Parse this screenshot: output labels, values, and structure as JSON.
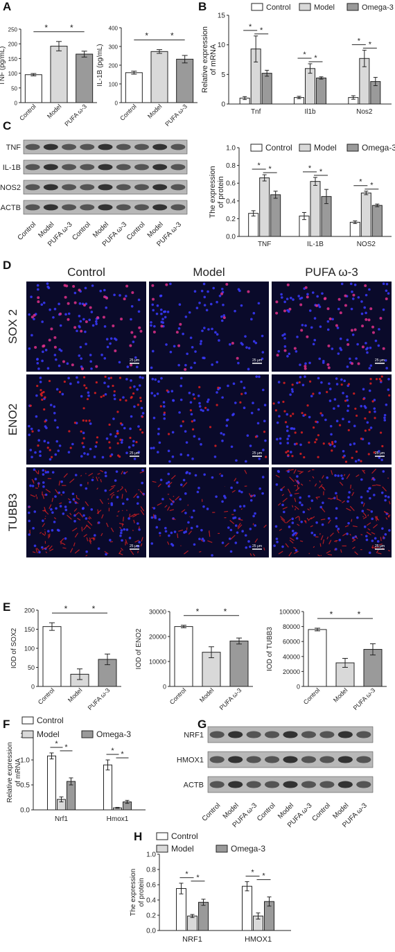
{
  "panel_labels": [
    "A",
    "B",
    "C",
    "D",
    "E",
    "F",
    "G",
    "H"
  ],
  "colors": {
    "control": "#ffffff",
    "model": "#d9d9d9",
    "omega": "#9a9a9a",
    "axis": "#222222",
    "blot_bg": "#b8b8b8",
    "band": "#2a2a2a",
    "micro_bg": "#0a0a2a",
    "nuclei": "#3a3aff",
    "stain_magenta": "#e0308a",
    "stain_red": "#e02020"
  },
  "blots": {
    "C": {
      "bands": [
        "TNF",
        "IL-1B",
        "NOS2",
        "ACTB"
      ],
      "lanes": [
        "Control",
        "Model",
        "PUFA ω-3",
        "Control",
        "Model",
        "PUFA ω-3",
        "Control",
        "Model",
        "PUFA ω-3"
      ]
    },
    "G": {
      "bands": [
        "NRF1",
        "HMOX1",
        "ACTB"
      ],
      "lanes": [
        "Control",
        "Model",
        "PUFA ω-3",
        "Control",
        "Model",
        "PUFA ω-3",
        "Control",
        "Model",
        "PUFA ω-3"
      ]
    }
  },
  "micrographs": {
    "columns": [
      "Control",
      "Model",
      "PUFA ω-3"
    ],
    "rows": [
      "SOX 2",
      "ENO2",
      "TUBB3"
    ],
    "scale_bar": "25 μm"
  },
  "chart_data": [
    {
      "id": "A1",
      "type": "bar",
      "categories": [
        "Control",
        "Model",
        "PUFA ω-3"
      ],
      "values": [
        95,
        192,
        165
      ],
      "errors": [
        4,
        16,
        10
      ],
      "ylabel": "TNF (pg/mL)",
      "ylim": [
        0,
        250
      ],
      "yticks": [
        0,
        50,
        100,
        150,
        200,
        250
      ],
      "sig": [
        "*",
        "*"
      ]
    },
    {
      "id": "A2",
      "type": "bar",
      "categories": [
        "Control",
        "Model",
        "PUFA ω-3"
      ],
      "values": [
        160,
        273,
        232
      ],
      "errors": [
        8,
        10,
        20
      ],
      "ylabel": "IL-1B (pg/mL)",
      "ylim": [
        0,
        400
      ],
      "yticks": [
        0,
        100,
        200,
        300,
        400
      ],
      "sig": [
        "*",
        "*"
      ]
    },
    {
      "id": "B",
      "type": "bar",
      "categories": [
        "Tnf",
        "Il1b",
        "Nos2"
      ],
      "series": [
        {
          "name": "Control",
          "values": [
            1.0,
            1.1,
            1.1
          ],
          "errors": [
            0.25,
            0.2,
            0.3
          ]
        },
        {
          "name": "Model",
          "values": [
            9.3,
            6.0,
            7.7
          ],
          "errors": [
            2.2,
            0.8,
            1.4
          ]
        },
        {
          "name": "Omega-3",
          "values": [
            5.2,
            4.4,
            3.8
          ],
          "errors": [
            0.5,
            0.2,
            0.7
          ]
        }
      ],
      "ylabel": "Relative expression of mRNA",
      "ylim": [
        0,
        15
      ],
      "yticks": [
        0,
        5,
        10,
        15
      ],
      "sig": [
        "*",
        "*"
      ]
    },
    {
      "id": "C",
      "type": "bar",
      "categories": [
        "TNF",
        "IL-1B",
        "NOS2"
      ],
      "series": [
        {
          "name": "Control",
          "values": [
            0.26,
            0.23,
            0.16
          ],
          "errors": [
            0.03,
            0.04,
            0.015
          ]
        },
        {
          "name": "Model",
          "values": [
            0.66,
            0.62,
            0.49
          ],
          "errors": [
            0.035,
            0.045,
            0.02
          ]
        },
        {
          "name": "Omega-3",
          "values": [
            0.47,
            0.45,
            0.35
          ],
          "errors": [
            0.04,
            0.08,
            0.015
          ]
        }
      ],
      "ylabel": "The expression of protein",
      "ylim": [
        0,
        1.0
      ],
      "yticks": [
        "0.0",
        "0.2",
        "0.4",
        "0.6",
        "0.8",
        "1.0"
      ],
      "sig": [
        "*",
        "*"
      ]
    },
    {
      "id": "E1",
      "type": "bar",
      "categories": [
        "Control",
        "Model",
        "PUFA ω-3"
      ],
      "values": [
        157,
        32,
        71
      ],
      "errors": [
        10,
        14,
        14
      ],
      "ylabel": "IOD of SOX2",
      "ylim": [
        0,
        200
      ],
      "yticks": [
        0,
        50,
        100,
        150,
        200
      ],
      "sig": [
        "*",
        "*"
      ]
    },
    {
      "id": "E2",
      "type": "bar",
      "categories": [
        "Control",
        "Model",
        "PUFA ω-3"
      ],
      "values": [
        24000,
        13700,
        18200
      ],
      "errors": [
        500,
        2200,
        1200
      ],
      "ylabel": "IOD of ENO2",
      "ylim": [
        0,
        30000
      ],
      "yticks": [
        0,
        10000,
        20000,
        30000
      ],
      "sig": [
        "*",
        "*"
      ]
    },
    {
      "id": "E3",
      "type": "bar",
      "categories": [
        "Control",
        "Model",
        "PUFA ω-3"
      ],
      "values": [
        76000,
        31500,
        49500
      ],
      "errors": [
        1800,
        6000,
        7500
      ],
      "ylabel": "IOD of TUBB3",
      "ylim": [
        0,
        100000
      ],
      "yticks": [
        0,
        20000,
        40000,
        60000,
        80000,
        100000
      ],
      "sig": [
        "*",
        "*"
      ]
    },
    {
      "id": "F",
      "type": "bar",
      "categories": [
        "Nrf1",
        "Hmox1"
      ],
      "series": [
        {
          "name": "Control",
          "values": [
            1.08,
            0.9
          ],
          "errors": [
            0.06,
            0.1
          ]
        },
        {
          "name": "Model",
          "values": [
            0.21,
            0.04
          ],
          "errors": [
            0.05,
            0.01
          ]
        },
        {
          "name": "Omega-3",
          "values": [
            0.57,
            0.16
          ],
          "errors": [
            0.07,
            0.03
          ]
        }
      ],
      "ylabel": "Relative expression of mRNA",
      "ylim": [
        0,
        1.5
      ],
      "yticks": [
        "0.0",
        "0.5",
        "1.0",
        "1.5"
      ],
      "sig": [
        "*",
        "*"
      ]
    },
    {
      "id": "H",
      "type": "bar",
      "categories": [
        "NRF1",
        "HMOX1"
      ],
      "series": [
        {
          "name": "Control",
          "values": [
            0.55,
            0.58
          ],
          "errors": [
            0.07,
            0.06
          ]
        },
        {
          "name": "Model",
          "values": [
            0.19,
            0.19
          ],
          "errors": [
            0.02,
            0.04
          ]
        },
        {
          "name": "Omega-3",
          "values": [
            0.37,
            0.38
          ],
          "errors": [
            0.04,
            0.06
          ]
        }
      ],
      "ylabel": "The expression of protein",
      "ylim": [
        0,
        1.0
      ],
      "yticks": [
        "0.0",
        "0.2",
        "0.4",
        "0.6",
        "0.8",
        "1.0"
      ],
      "sig": [
        "*",
        "*"
      ]
    }
  ]
}
